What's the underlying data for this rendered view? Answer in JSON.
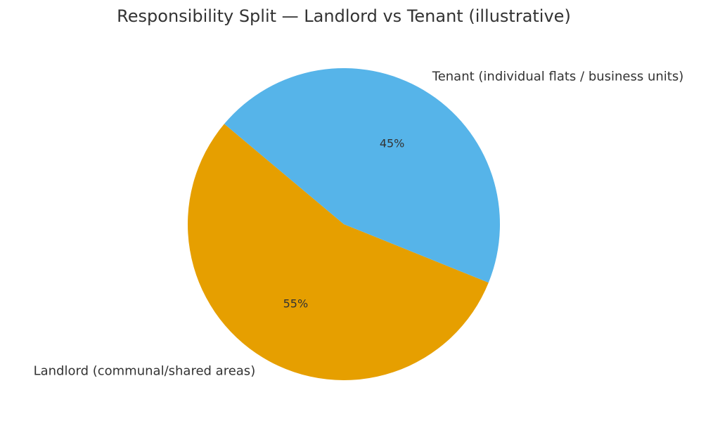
{
  "chart_data": {
    "type": "pie",
    "title": "Responsibility Split — Landlord vs Tenant (illustrative)",
    "categories": [
      "Landlord (communal/shared areas)",
      "Tenant (individual flats / business units)"
    ],
    "values": [
      55,
      45
    ],
    "value_labels": [
      "55%",
      "45%"
    ],
    "colors": [
      "#e69f00",
      "#56b4e9"
    ]
  }
}
